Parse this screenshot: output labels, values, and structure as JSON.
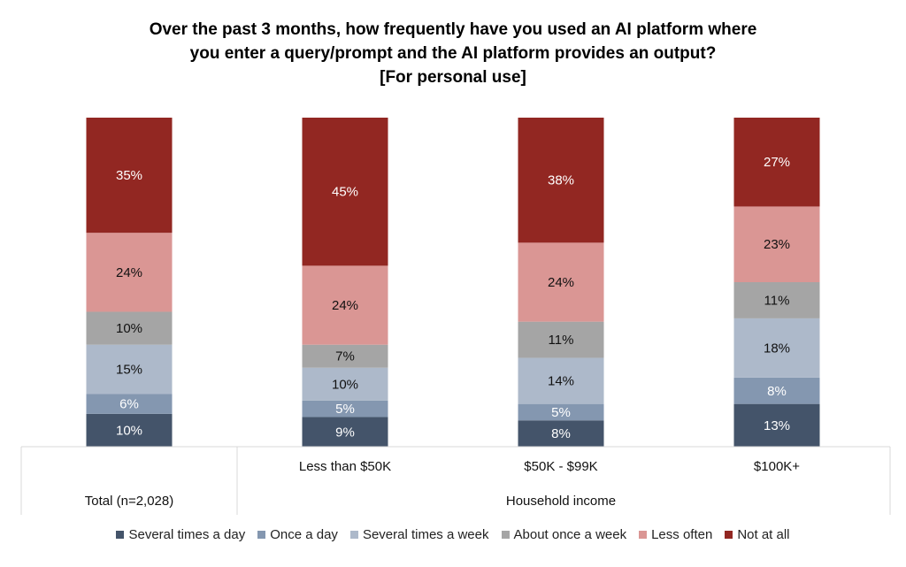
{
  "chart_data": {
    "type": "bar",
    "stacked": true,
    "orientation": "vertical",
    "title_lines": [
      "Over the past 3 months, how frequently have you used an AI platform where",
      "you enter a query/prompt and the AI platform provides an output?",
      "[For personal use]"
    ],
    "categories": [
      "Total (n=2,028)",
      "Less than $50K",
      "$50K - $99K",
      "$100K+"
    ],
    "category_groups": [
      {
        "label": "Total (n=2,028)",
        "categories": [
          "Total (n=2,028)"
        ]
      },
      {
        "label": "Household income",
        "categories": [
          "Less than $50K",
          "$50K - $99K",
          "$100K+"
        ]
      }
    ],
    "series": [
      {
        "name": "Several times a day",
        "color": "#44546A",
        "label_color": "#ffffff",
        "values": [
          10,
          9,
          8,
          13
        ]
      },
      {
        "name": "Once a day",
        "color": "#8497B0",
        "label_color": "#ffffff",
        "values": [
          6,
          5,
          5,
          8
        ]
      },
      {
        "name": "Several times a week",
        "color": "#ADB9CA",
        "label_color": "#111111",
        "values": [
          15,
          10,
          14,
          18
        ]
      },
      {
        "name": "About once a week",
        "color": "#A5A5A5",
        "label_color": "#111111",
        "values": [
          10,
          7,
          11,
          11
        ]
      },
      {
        "name": "Less often",
        "color": "#DA9694",
        "label_color": "#111111",
        "values": [
          24,
          24,
          24,
          23
        ]
      },
      {
        "name": "Not at all",
        "color": "#922722",
        "label_color": "#ffffff",
        "values": [
          35,
          45,
          38,
          27
        ]
      }
    ],
    "value_suffix": "%",
    "ylim": [
      0,
      100
    ],
    "y_axis_visible": false,
    "grid": false,
    "legend_position": "bottom"
  }
}
